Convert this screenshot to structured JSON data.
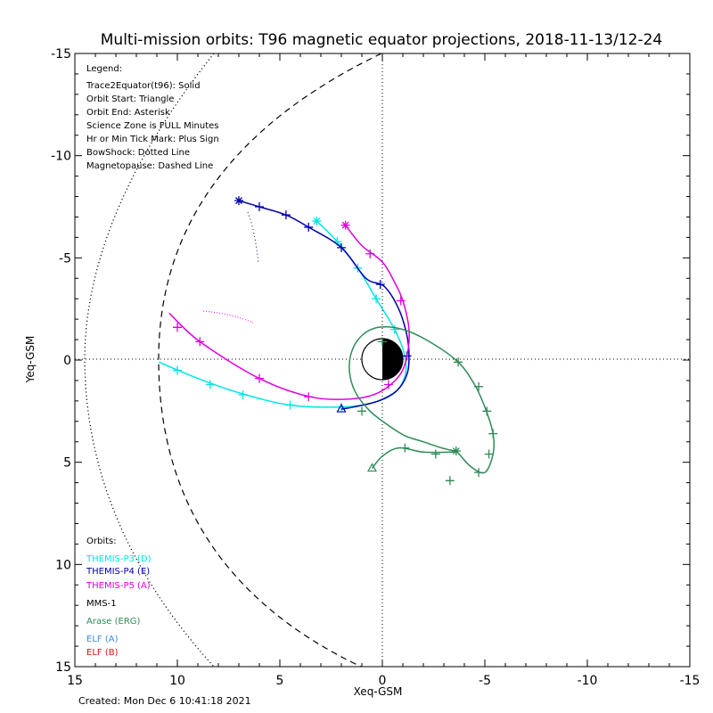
{
  "chart_data": {
    "type": "line",
    "title": "Multi-mission orbits: T96 magnetic equator projections, 2018-11-13/12-24",
    "xlabel": "Xeq-GSM",
    "ylabel": "Yeq-GSM",
    "xlim": [
      15,
      -15
    ],
    "ylim": [
      -15,
      15
    ],
    "x_ticks": [
      "15",
      "10",
      "5",
      "0",
      "-5",
      "-10",
      "-15"
    ],
    "y_ticks": [
      "-15",
      "-10",
      "-5",
      "0",
      "5",
      "10",
      "15"
    ],
    "grid": false,
    "legend_header": "Legend:",
    "legend_lines": [
      "Trace2Equator(t96): Solid",
      "Orbit Start: Triangle",
      "Orbit End: Asterisk",
      "Science Zone is FULL Minutes",
      "Hr or Min Tick Mark: Plus Sign",
      "BowShock: Dotted Line",
      "Magnetopause: Dashed Line"
    ],
    "orbits_header": "Orbits:",
    "series": [
      {
        "name": "THEMIS-P3 (D)",
        "color": "#00e5e5",
        "points": [
          [
            3.2,
            -6.8
          ],
          [
            2.2,
            -5.8
          ],
          [
            1.2,
            -4.5
          ],
          [
            0.3,
            -3.0
          ],
          [
            -0.6,
            -1.5
          ],
          [
            -1.1,
            -0.2
          ],
          [
            -1.1,
            0.8
          ],
          [
            -0.6,
            1.6
          ],
          [
            0.5,
            2.1
          ],
          [
            2.0,
            2.3
          ],
          [
            4.5,
            2.2
          ],
          [
            7.0,
            1.6
          ],
          [
            9.0,
            0.9
          ],
          [
            10.9,
            0.1
          ]
        ],
        "ticks": [
          [
            2.2,
            -5.8
          ],
          [
            1.2,
            -4.5
          ],
          [
            0.3,
            -3.0
          ],
          [
            -0.6,
            -1.5
          ],
          [
            2.0,
            2.3
          ],
          [
            4.5,
            2.2
          ],
          [
            6.8,
            1.7
          ],
          [
            8.4,
            1.2
          ],
          [
            10.0,
            0.5
          ]
        ],
        "start": null,
        "end": [
          3.2,
          -6.8
        ]
      },
      {
        "name": "THEMIS-P4 (E)",
        "color": "#0000aa",
        "points": [
          [
            7.0,
            -7.8
          ],
          [
            6.0,
            -7.5
          ],
          [
            4.7,
            -7.1
          ],
          [
            3.6,
            -6.5
          ],
          [
            2.0,
            -5.5
          ],
          [
            0.8,
            -4.0
          ],
          [
            -0.1,
            -3.6
          ],
          [
            -0.8,
            -2.5
          ],
          [
            -1.2,
            -1.2
          ],
          [
            -1.3,
            -0.2
          ],
          [
            -1.2,
            0.7
          ],
          [
            -0.7,
            1.5
          ],
          [
            0.2,
            2.0
          ],
          [
            1.4,
            2.3
          ],
          [
            2.0,
            2.4
          ]
        ],
        "ticks": [
          [
            6.0,
            -7.5
          ],
          [
            4.7,
            -7.1
          ],
          [
            3.6,
            -6.5
          ],
          [
            2.0,
            -5.5
          ],
          [
            0.1,
            -3.7
          ],
          [
            -1.2,
            -0.2
          ]
        ],
        "start": [
          2.0,
          2.4
        ],
        "end": [
          7.0,
          -7.8
        ]
      },
      {
        "name": "THEMIS-P5 (A)",
        "color": "#e000e0",
        "points": [
          [
            1.8,
            -6.6
          ],
          [
            1.0,
            -5.6
          ],
          [
            0.0,
            -4.8
          ],
          [
            -0.6,
            -3.8
          ],
          [
            -1.0,
            -2.9
          ],
          [
            -1.3,
            -1.5
          ],
          [
            -1.2,
            -0.2
          ],
          [
            -0.8,
            0.8
          ],
          [
            0.2,
            1.6
          ],
          [
            1.5,
            1.9
          ],
          [
            3.5,
            1.8
          ],
          [
            6.0,
            0.9
          ],
          [
            8.9,
            -0.9
          ],
          [
            10.4,
            -2.3
          ]
        ],
        "ticks": [
          [
            0.6,
            -5.2
          ],
          [
            -0.9,
            -2.9
          ],
          [
            -0.3,
            1.2
          ],
          [
            3.6,
            1.8
          ],
          [
            6.0,
            0.9
          ],
          [
            8.9,
            -0.9
          ],
          [
            10.0,
            -1.6
          ]
        ],
        "start": null,
        "end": [
          1.8,
          -6.6
        ]
      },
      {
        "name": "MMS-1",
        "color": "#000000",
        "points": [],
        "ticks": [],
        "start": null,
        "end": null
      },
      {
        "name": "Arase (ERG)",
        "color": "#2e8b57",
        "points": [
          [
            0.5,
            5.3
          ],
          [
            0.0,
            4.7
          ],
          [
            -0.8,
            4.3
          ],
          [
            -2.0,
            4.5
          ],
          [
            -3.4,
            4.5
          ],
          [
            -3.6,
            4.45
          ],
          [
            -4.3,
            5.2
          ],
          [
            -5.0,
            5.5
          ],
          [
            -5.4,
            4.6
          ],
          [
            -5.4,
            3.6
          ],
          [
            -5.0,
            2.3
          ],
          [
            -4.5,
            1.2
          ],
          [
            -3.7,
            0.1
          ],
          [
            -2.3,
            -0.9
          ],
          [
            -1.0,
            -1.5
          ],
          [
            0.2,
            -1.6
          ],
          [
            1.0,
            -1.2
          ],
          [
            1.5,
            -0.4
          ],
          [
            1.6,
            0.6
          ],
          [
            1.3,
            1.6
          ],
          [
            0.6,
            2.5
          ],
          [
            -0.3,
            3.2
          ],
          [
            -1.1,
            3.7
          ],
          [
            -2.0,
            4.0
          ],
          [
            -2.9,
            4.3
          ],
          [
            -3.3,
            4.4
          ],
          [
            -3.6,
            4.45
          ]
        ],
        "ticks": [
          [
            -1.1,
            4.3
          ],
          [
            -2.6,
            4.6
          ],
          [
            -3.3,
            5.9
          ],
          [
            -4.7,
            5.5
          ],
          [
            -5.2,
            4.6
          ],
          [
            -5.4,
            3.6
          ],
          [
            -5.1,
            2.5
          ],
          [
            -4.7,
            1.3
          ],
          [
            -3.7,
            0.1
          ],
          [
            0.0,
            -0.9
          ],
          [
            1.0,
            2.5
          ]
        ],
        "start": [
          0.5,
          5.3
        ],
        "end": [
          -3.6,
          4.45
        ]
      },
      {
        "name": "ELF (A)",
        "color": "#3a8ee6",
        "points": [],
        "ticks": [],
        "start": null,
        "end": null
      },
      {
        "name": "ELF (B)",
        "color": "#e01010",
        "points": [],
        "ticks": [],
        "start": null,
        "end": null
      }
    ]
  },
  "footer": {
    "created": "Created: Mon Dec  6 10:41:18 2021"
  }
}
